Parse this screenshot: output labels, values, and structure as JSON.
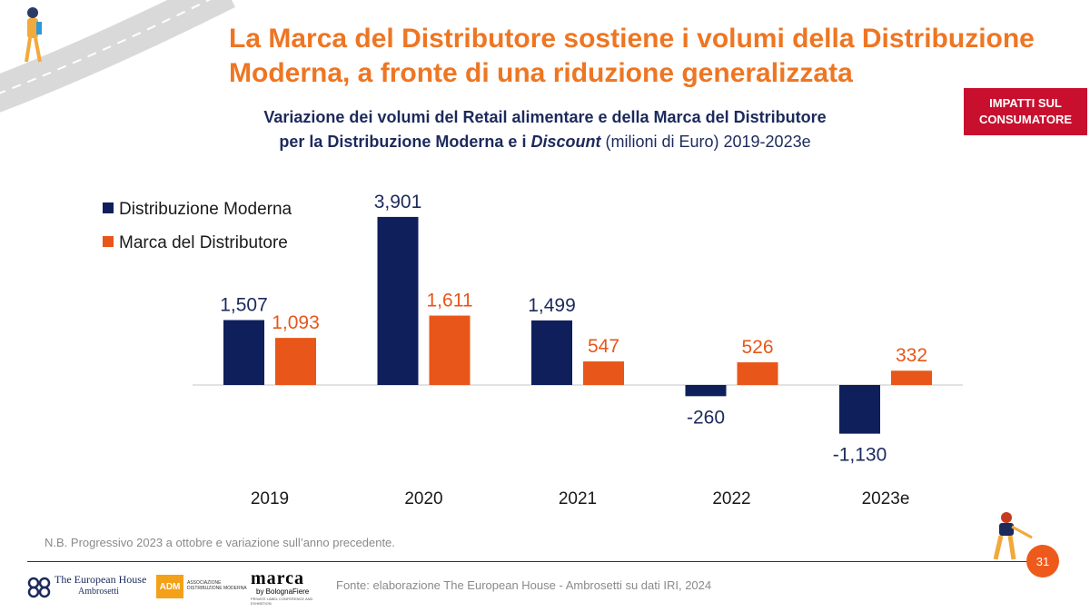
{
  "page": {
    "title": "La Marca del Distributore sostiene i volumi della Distribuzione Moderna, a fronte di una riduzione generalizzata",
    "subtitle_line1": "Variazione dei volumi del Retail alimentare e della Marca del Distributore",
    "subtitle_line2_a": "per la Distribuzione Moderna e i ",
    "subtitle_line2_b": "Discount",
    "subtitle_line2_c": " (milioni di Euro) 2019-2023e",
    "badge": "IMPATTI SUL CONSUMATORE",
    "note": "N.B. Progressivo 2023 a ottobre e variazione sull’anno precedente.",
    "source": "Fonte: elaborazione The European House - Ambrosetti su dati IRI, 2024",
    "page_number": "31",
    "logos": {
      "teh_line1": "The European House",
      "teh_line2": "Ambrosetti",
      "adm": "ADM",
      "adm_sub1": "ASSOCIAZIONE",
      "adm_sub2": "DISTRIBUZIONE MODERNA",
      "marca": "marca",
      "marca_by": "by BolognaFiere",
      "marca_tag1": "PRIVATE LABEL CONFERENCE AND",
      "marca_tag2": "EXHIBITION"
    }
  },
  "colors": {
    "series1": "#0f1f5c",
    "series2": "#e8561a",
    "title": "#ee7623",
    "badge": "#c8102e"
  },
  "chart_data": {
    "type": "bar",
    "categories": [
      "2019",
      "2020",
      "2021",
      "2022",
      "2023e"
    ],
    "series": [
      {
        "name": "Distribuzione Moderna",
        "values": [
          1507,
          3901,
          1499,
          -260,
          -1130
        ]
      },
      {
        "name": "Marca del Distributore",
        "values": [
          1093,
          1611,
          547,
          526,
          332
        ]
      }
    ],
    "data_labels": [
      [
        "1,507",
        "3,901",
        "1,499",
        "-260",
        "-1,130"
      ],
      [
        "1,093",
        "1,611",
        "547",
        "526",
        "332"
      ]
    ],
    "legend_position": "top-left",
    "grid": false
  }
}
